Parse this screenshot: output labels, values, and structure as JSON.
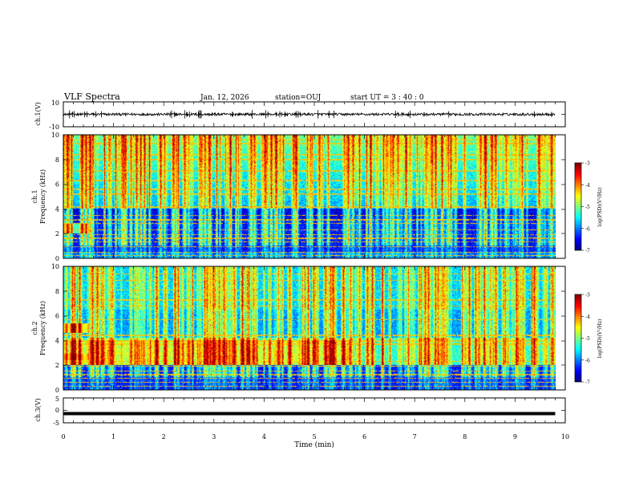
{
  "header": {
    "title": "VLF Spectra",
    "date": "Jan. 12, 2026",
    "station": "station=OUJ",
    "start_ut": "start  UT =  3 : 40 : 0"
  },
  "chart_data": [
    {
      "type": "line",
      "name": "ch1-waveform",
      "ylabel": "ch.1(V)",
      "ylim": [
        -10,
        10
      ],
      "yticks": [
        "10",
        "-10"
      ],
      "baseline_value": 0,
      "noise_amplitude": 1,
      "xlim": [
        0,
        10
      ]
    },
    {
      "type": "heatmap",
      "name": "ch1-spectrogram",
      "ylabel": "ch.1\nFrequency (kHz)",
      "ylabel_lines": [
        "ch.1",
        "Frequency (kHz)"
      ],
      "ylim": [
        0,
        10
      ],
      "yticks": [
        "0",
        "2",
        "4",
        "6",
        "8",
        "10"
      ],
      "xlim": [
        0,
        9.8
      ],
      "colorbar": {
        "label": "log(PSD)(V²/Hz)",
        "range": [
          -7,
          -3
        ],
        "ticks": [
          "-3",
          "-4",
          "-5",
          "-6",
          "-7"
        ]
      }
    },
    {
      "type": "heatmap",
      "name": "ch2-spectrogram",
      "ylabel": "ch.2\nFrequency (kHz)",
      "ylabel_lines": [
        "ch.2",
        "Frequency (kHz)"
      ],
      "ylim": [
        0,
        10
      ],
      "yticks": [
        "0",
        "2",
        "4",
        "6",
        "8",
        "10"
      ],
      "xlim": [
        0,
        9.8
      ],
      "colorbar": {
        "label": "log(PSD)(V²/Hz)",
        "range": [
          -7,
          -3
        ],
        "ticks": [
          "-3",
          "-4",
          "-5",
          "-6",
          "-7"
        ]
      }
    },
    {
      "type": "line",
      "name": "ch3-waveform",
      "ylabel": "ch.3(V)",
      "ylim": [
        -5,
        5
      ],
      "yticks": [
        "5",
        "0",
        "-5"
      ],
      "baseline_value": -1.3,
      "xlim": [
        0,
        9.8
      ]
    }
  ],
  "xaxis": {
    "label": "Time (min)",
    "range": [
      0,
      10
    ],
    "ticks": [
      "0",
      "1",
      "2",
      "3",
      "4",
      "5",
      "6",
      "7",
      "8",
      "9",
      "10"
    ]
  }
}
